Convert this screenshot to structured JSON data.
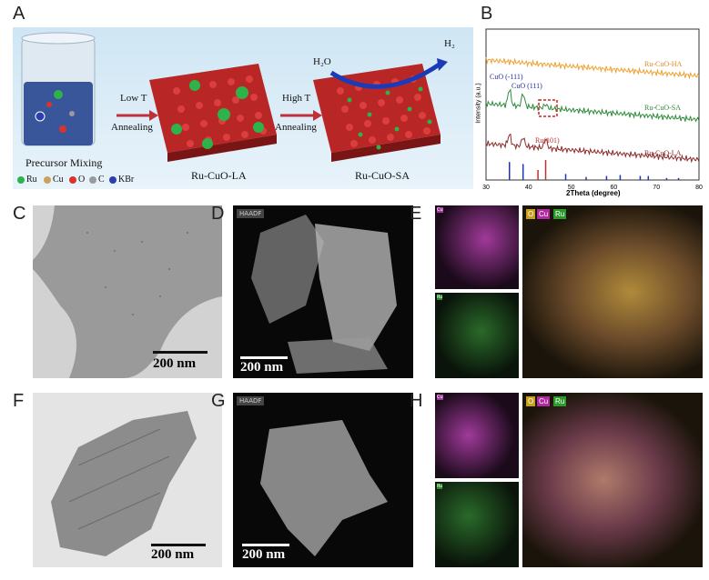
{
  "panel_labels": {
    "A": "A",
    "B": "B",
    "C": "C",
    "D": "D",
    "E": "E",
    "F": "F",
    "G": "G",
    "H": "H"
  },
  "schematic": {
    "legend_title": "Precursor Mixing",
    "legend_items": [
      {
        "label": "Ru",
        "color": "#2db34a"
      },
      {
        "label": "Cu",
        "color": "#c9a25e"
      },
      {
        "label": "O",
        "color": "#d9342b"
      },
      {
        "label": "C",
        "color": "#9a9a9a"
      },
      {
        "label": "KBr",
        "color": "#2b3fae"
      }
    ],
    "arrow1_top": "Low T",
    "arrow1_bottom": "Annealing",
    "arrow2_top": "High T",
    "arrow2_bottom": "Annealing",
    "label_la": "Ru-CuO-LA",
    "label_sa": "Ru-CuO-SA",
    "h2o": "H₂O",
    "h2": "H₂"
  },
  "chart_data": {
    "type": "line",
    "xlabel": "2Theta (degree)",
    "ylabel": "Intensity (a.u.)",
    "xlim": [
      30,
      80
    ],
    "xticks": [
      "30",
      "40",
      "50",
      "60",
      "70",
      "80"
    ],
    "series": [
      {
        "name": "Ru-CuO-HA",
        "color": "#f0a030"
      },
      {
        "name": "Ru-CuO-SA",
        "color": "#2e8b3a"
      },
      {
        "name": "Ru-CuO-LA",
        "color": "#8b2a2a"
      }
    ],
    "annotations": [
      {
        "text": "CuO (-111)",
        "color": "#2030a0"
      },
      {
        "text": "CuO (111)",
        "color": "#2030a0"
      },
      {
        "text": "Ru(101)",
        "color": "#c03030"
      }
    ],
    "reference_sticks": [
      {
        "x": 35.5,
        "h": 0.9,
        "color": "#2030c0"
      },
      {
        "x": 38.7,
        "h": 0.8,
        "color": "#2030c0"
      },
      {
        "x": 44.0,
        "h": 1.0,
        "color": "#c03030"
      },
      {
        "x": 42.2,
        "h": 0.5,
        "color": "#c03030"
      },
      {
        "x": 48.7,
        "h": 0.3,
        "color": "#2030c0"
      },
      {
        "x": 53.5,
        "h": 0.15,
        "color": "#2030c0"
      },
      {
        "x": 58.3,
        "h": 0.2,
        "color": "#2030c0"
      },
      {
        "x": 61.5,
        "h": 0.25,
        "color": "#2030c0"
      },
      {
        "x": 66.2,
        "h": 0.2,
        "color": "#2030c0"
      },
      {
        "x": 68.1,
        "h": 0.2,
        "color": "#2030c0"
      },
      {
        "x": 72.4,
        "h": 0.1,
        "color": "#2030c0"
      },
      {
        "x": 75.2,
        "h": 0.1,
        "color": "#2030c0"
      }
    ]
  },
  "scale_bars": {
    "C": "200 nm",
    "D": "200 nm",
    "F": "200 nm",
    "G": "200 nm"
  },
  "haadf_tag": "HAADF",
  "map_tags": {
    "cu": "Cu",
    "ru": "Ru",
    "overlay_cu": "Cu",
    "overlay_ru": "Ru",
    "overlay_o": "O"
  }
}
